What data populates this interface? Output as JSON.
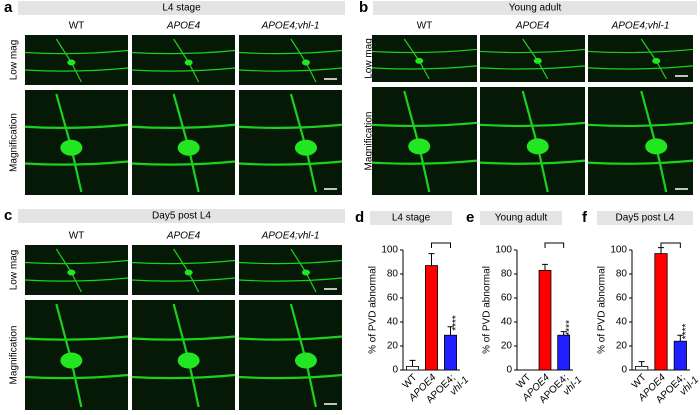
{
  "panels": [
    {
      "label": "a",
      "title": "L4 stage",
      "columns": [
        "WT",
        "APOE4",
        "APOE4;vhl-1"
      ],
      "rows": [
        "Low mag",
        "Magnification"
      ]
    },
    {
      "label": "b",
      "title": "Young adult",
      "columns": [
        "WT",
        "APOE4",
        "APOE4;vhl-1"
      ],
      "rows": [
        "Low mag",
        "Magnification"
      ]
    },
    {
      "label": "c",
      "title": "Day5 post L4",
      "columns": [
        "WT",
        "APOE4",
        "APOE4;vhl-1"
      ],
      "rows": [
        "Low mag",
        "Magnification"
      ]
    }
  ],
  "chart_data": [
    {
      "type": "bar",
      "label": "d",
      "title": "L4 stage",
      "ylabel": "% of PVD abnormal",
      "categories": [
        "WT",
        "APOE4",
        "APOE4;vhl-1"
      ],
      "values": [
        3,
        87,
        29
      ],
      "errors": [
        5,
        10,
        7
      ],
      "colors": [
        "#ffffff",
        "#ff0000",
        "#1f1fff"
      ],
      "significance": "****",
      "ylim": [
        0,
        100
      ],
      "yticks": [
        0,
        20,
        40,
        60,
        80,
        100
      ]
    },
    {
      "type": "bar",
      "label": "e",
      "title": "Young adult",
      "ylabel": "% of PVD abnormal",
      "categories": [
        "WT",
        "APOE4",
        "APOE4;vhl-1"
      ],
      "values": [
        0,
        83,
        29
      ],
      "errors": [
        0,
        5,
        3
      ],
      "colors": [
        "#ffffff",
        "#ff0000",
        "#1f1fff"
      ],
      "significance": "****",
      "ylim": [
        0,
        100
      ],
      "yticks": [
        0,
        20,
        40,
        60,
        80,
        100
      ]
    },
    {
      "type": "bar",
      "label": "f",
      "title": "Day5 post L4",
      "ylabel": "% of PVD abnormal",
      "categories": [
        "WT",
        "APOE4",
        "APOE4;vhl-1"
      ],
      "values": [
        3,
        97,
        24
      ],
      "errors": [
        4,
        5,
        5
      ],
      "colors": [
        "#ffffff",
        "#ff0000",
        "#1f1fff"
      ],
      "significance": "****",
      "ylim": [
        0,
        100
      ],
      "yticks": [
        0,
        20,
        40,
        60,
        80,
        100
      ]
    }
  ]
}
